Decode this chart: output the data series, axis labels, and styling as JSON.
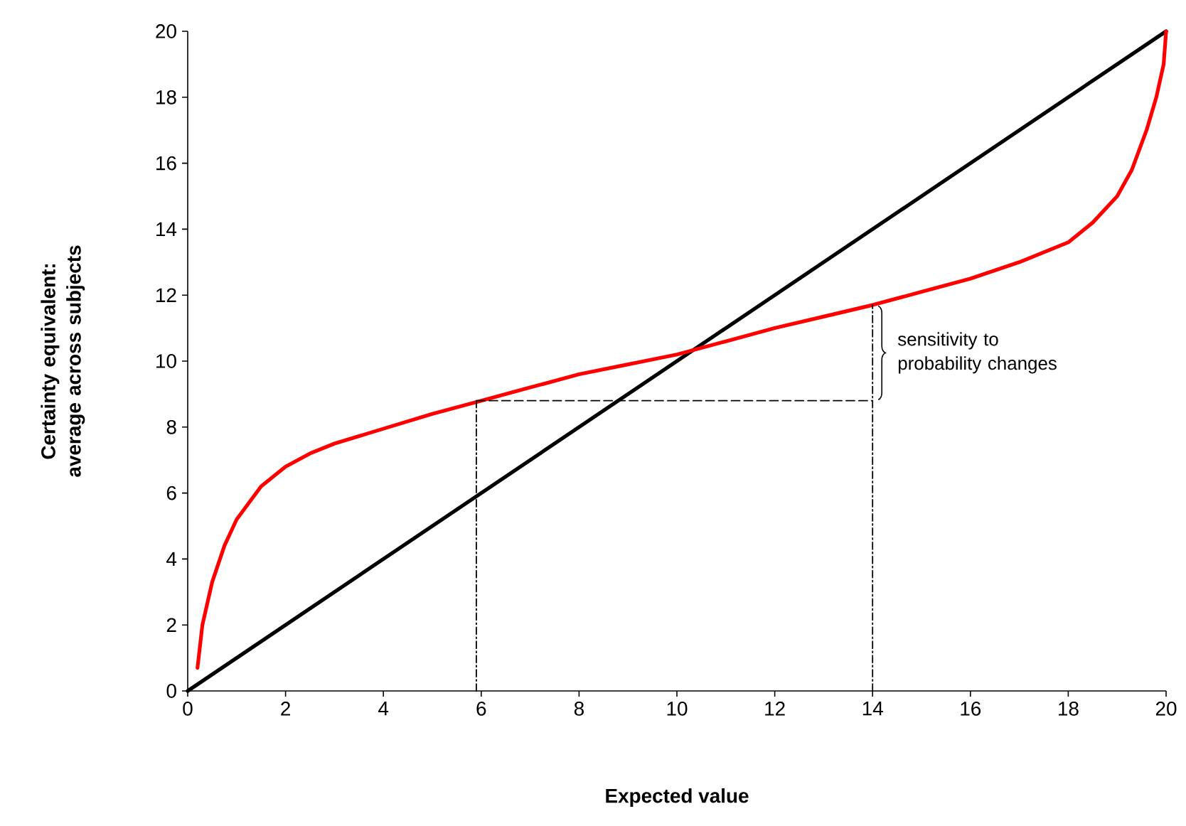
{
  "chart_data": {
    "type": "line",
    "xlabel": "Expected value",
    "ylabel": "Certainty equivalent: average across subjects",
    "xlim": [
      0,
      20
    ],
    "ylim": [
      0,
      20
    ],
    "xticks": [
      0,
      2,
      4,
      6,
      8,
      10,
      12,
      14,
      16,
      18,
      20
    ],
    "yticks": [
      0,
      2,
      4,
      6,
      8,
      10,
      12,
      14,
      16,
      18,
      20
    ],
    "series": [
      {
        "color": "#000000",
        "x": [
          0,
          20
        ],
        "values": [
          0,
          20
        ]
      },
      {
        "color": "#ff0000",
        "x": [
          0.2,
          0.3,
          0.5,
          0.75,
          1,
          1.5,
          2,
          2.5,
          3,
          4,
          5,
          6,
          7,
          8,
          9,
          10,
          11,
          12,
          13,
          14,
          15,
          16,
          17,
          18,
          18.5,
          19,
          19.3,
          19.6,
          19.8,
          19.95,
          20
        ],
        "values": [
          0.7,
          2.0,
          3.3,
          4.4,
          5.2,
          6.2,
          6.8,
          7.2,
          7.5,
          7.95,
          8.4,
          8.8,
          9.2,
          9.6,
          9.9,
          10.2,
          10.6,
          11.0,
          11.35,
          11.7,
          12.1,
          12.5,
          13.0,
          13.6,
          14.2,
          15.0,
          15.8,
          17.0,
          18.0,
          19.0,
          20.0
        ]
      },
      {
        "color": "#000000",
        "x": [
          5.9,
          14
        ],
        "values": [
          8.8,
          8.8
        ],
        "line_style": "dashed"
      },
      {
        "color": "#000000",
        "x": [
          5.9,
          5.9
        ],
        "values": [
          0,
          8.8
        ],
        "line_style": "dashdot"
      },
      {
        "color": "#000000",
        "x": [
          14,
          14
        ],
        "values": [
          0,
          11.7
        ],
        "line_style": "dashdot"
      }
    ],
    "annotations": [
      {
        "text": "sensitivity to probability changes",
        "x": 14,
        "y": 10.25
      }
    ]
  }
}
